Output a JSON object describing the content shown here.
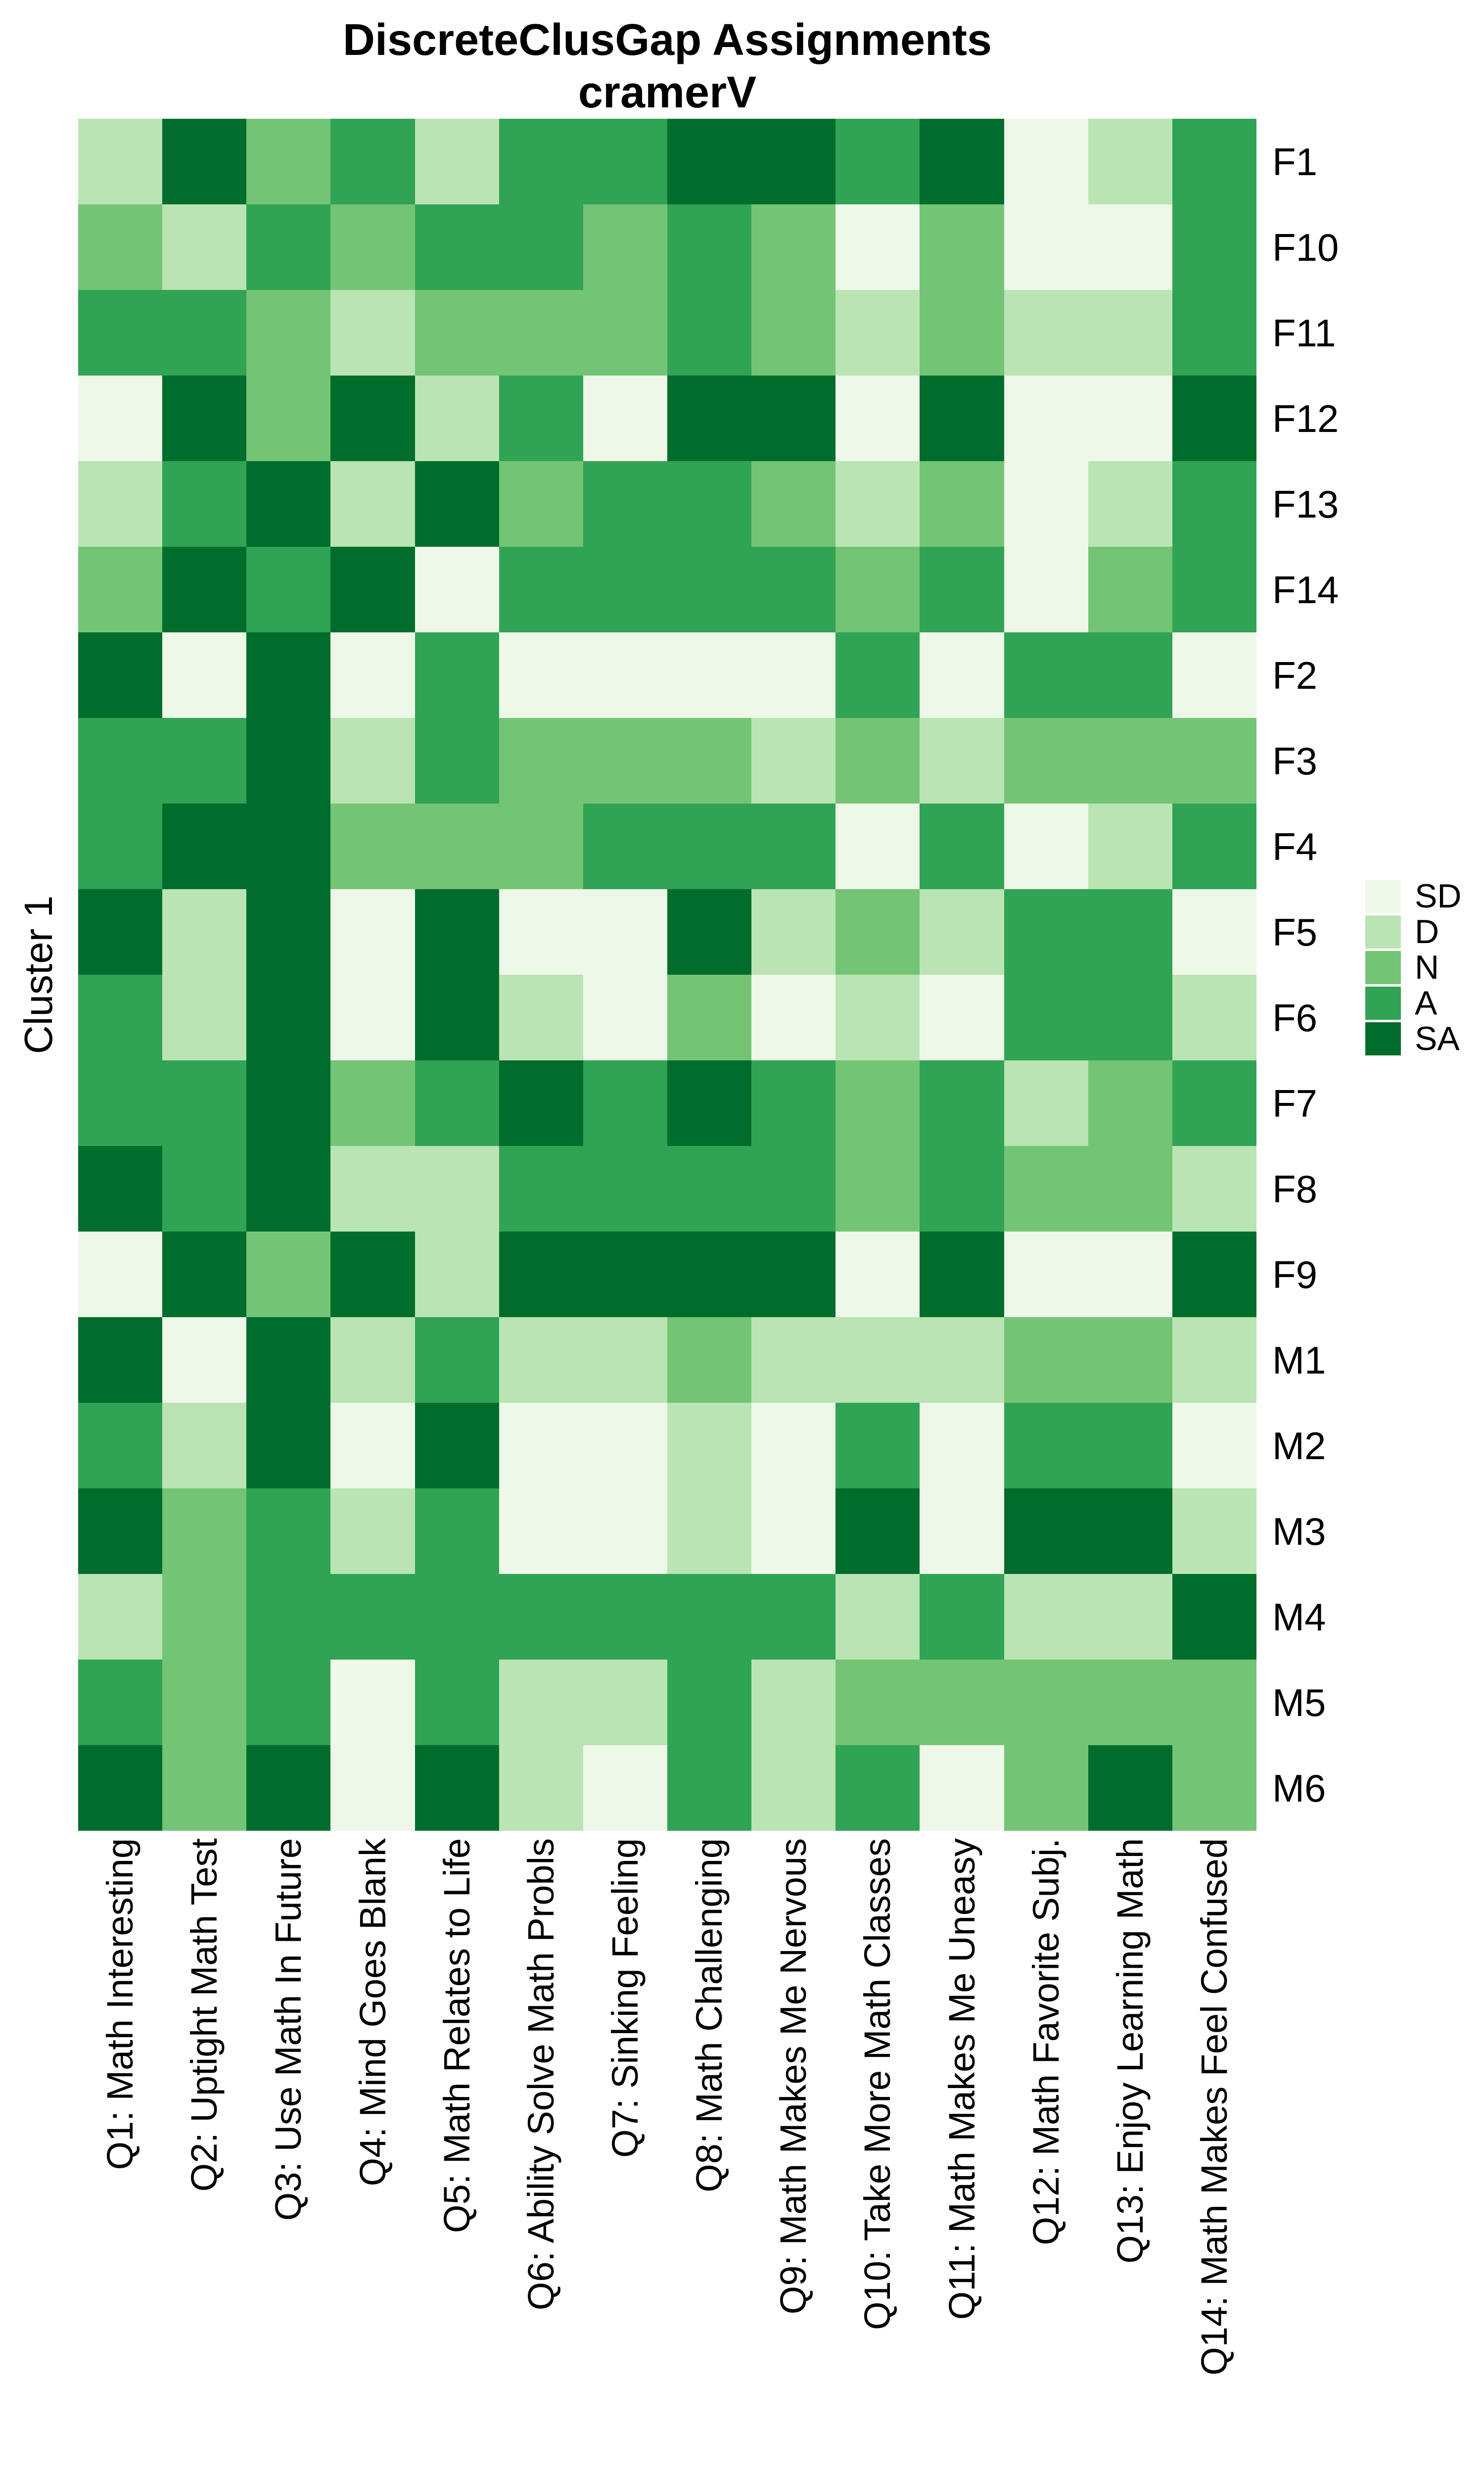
{
  "page": {
    "background": "#FFFFFF"
  },
  "chart_data": {
    "type": "heatmap",
    "title": "DiscreteClusGap Assignments",
    "subtitle": "cramerV",
    "left_axis_label": "Cluster 1",
    "legend_position": "right",
    "gridlines": false,
    "columns": [
      "Q1: Math Interesting",
      "Q2: Uptight Math Test",
      "Q3: Use Math In Future",
      "Q4: Mind Goes Blank",
      "Q5: Math Relates to Life",
      "Q6: Ability Solve Math Probls",
      "Q7: Sinking Feeling",
      "Q8: Math Challenging",
      "Q9: Math Makes Me Nervous",
      "Q10: Take More Math Classes",
      "Q11: Math Makes Me Uneasy",
      "Q12: Math Favorite Subj.",
      "Q13: Enjoy Learning Math",
      "Q14: Math Makes Feel Confused"
    ],
    "rows": [
      "F1",
      "F10",
      "F11",
      "F12",
      "F13",
      "F14",
      "F2",
      "F3",
      "F4",
      "F5",
      "F6",
      "F7",
      "F8",
      "F9",
      "M1",
      "M2",
      "M3",
      "M4",
      "M5",
      "M6"
    ],
    "levels": [
      "SD",
      "D",
      "N",
      "A",
      "SA"
    ],
    "palette": {
      "SD": "#EDF8E9",
      "D": "#BAE4B3",
      "N": "#74C476",
      "A": "#31A354",
      "SA": "#006D2C"
    },
    "values": [
      [
        "D",
        "SA",
        "N",
        "A",
        "D",
        "A",
        "A",
        "SA",
        "SA",
        "A",
        "SA",
        "SD",
        "D",
        "A"
      ],
      [
        "N",
        "D",
        "A",
        "N",
        "A",
        "A",
        "N",
        "A",
        "N",
        "SD",
        "N",
        "SD",
        "SD",
        "A"
      ],
      [
        "A",
        "A",
        "N",
        "D",
        "N",
        "N",
        "N",
        "A",
        "N",
        "D",
        "N",
        "D",
        "D",
        "A"
      ],
      [
        "SD",
        "SA",
        "N",
        "SA",
        "D",
        "A",
        "SD",
        "SA",
        "SA",
        "SD",
        "SA",
        "SD",
        "SD",
        "SA"
      ],
      [
        "D",
        "A",
        "SA",
        "D",
        "SA",
        "N",
        "A",
        "A",
        "N",
        "D",
        "N",
        "SD",
        "D",
        "A"
      ],
      [
        "N",
        "SA",
        "A",
        "SA",
        "SD",
        "A",
        "A",
        "A",
        "A",
        "N",
        "A",
        "SD",
        "N",
        "A"
      ],
      [
        "SA",
        "SD",
        "SA",
        "SD",
        "A",
        "SD",
        "SD",
        "SD",
        "SD",
        "A",
        "SD",
        "A",
        "A",
        "SD"
      ],
      [
        "A",
        "A",
        "SA",
        "D",
        "A",
        "N",
        "N",
        "N",
        "D",
        "N",
        "D",
        "N",
        "N",
        "N"
      ],
      [
        "A",
        "SA",
        "SA",
        "N",
        "N",
        "N",
        "A",
        "A",
        "A",
        "SD",
        "A",
        "SD",
        "D",
        "A"
      ],
      [
        "SA",
        "D",
        "SA",
        "SD",
        "SA",
        "SD",
        "SD",
        "SA",
        "D",
        "N",
        "D",
        "A",
        "A",
        "SD"
      ],
      [
        "A",
        "D",
        "SA",
        "SD",
        "SA",
        "D",
        "SD",
        "N",
        "SD",
        "D",
        "SD",
        "A",
        "A",
        "D"
      ],
      [
        "A",
        "A",
        "SA",
        "N",
        "A",
        "SA",
        "A",
        "SA",
        "A",
        "N",
        "A",
        "D",
        "N",
        "A"
      ],
      [
        "SA",
        "A",
        "SA",
        "D",
        "D",
        "A",
        "A",
        "A",
        "A",
        "N",
        "A",
        "N",
        "N",
        "D"
      ],
      [
        "SD",
        "SA",
        "N",
        "SA",
        "D",
        "SA",
        "SA",
        "SA",
        "SA",
        "SD",
        "SA",
        "SD",
        "SD",
        "SA"
      ],
      [
        "SA",
        "SD",
        "SA",
        "D",
        "A",
        "D",
        "D",
        "N",
        "D",
        "D",
        "D",
        "N",
        "N",
        "D"
      ],
      [
        "A",
        "D",
        "SA",
        "SD",
        "SA",
        "SD",
        "SD",
        "D",
        "SD",
        "A",
        "SD",
        "A",
        "A",
        "SD"
      ],
      [
        "SA",
        "N",
        "A",
        "D",
        "A",
        "SD",
        "SD",
        "D",
        "SD",
        "SA",
        "SD",
        "SA",
        "SA",
        "D"
      ],
      [
        "D",
        "N",
        "A",
        "A",
        "A",
        "A",
        "A",
        "A",
        "A",
        "D",
        "A",
        "D",
        "D",
        "SA"
      ],
      [
        "A",
        "N",
        "A",
        "SD",
        "A",
        "D",
        "D",
        "A",
        "D",
        "N",
        "N",
        "N",
        "N",
        "N"
      ],
      [
        "SA",
        "N",
        "SA",
        "SD",
        "SA",
        "D",
        "SD",
        "A",
        "D",
        "A",
        "SD",
        "N",
        "SA",
        "N"
      ]
    ]
  },
  "legend": {
    "entries": [
      {
        "label": "SD",
        "color": "#EDF8E9"
      },
      {
        "label": "D",
        "color": "#BAE4B3"
      },
      {
        "label": "N",
        "color": "#74C476"
      },
      {
        "label": "A",
        "color": "#31A354"
      },
      {
        "label": "SA",
        "color": "#006D2C"
      }
    ]
  }
}
